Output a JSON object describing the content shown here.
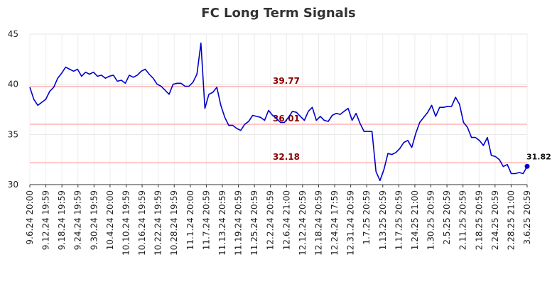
{
  "chart_data": {
    "type": "line",
    "title": "FC Long Term Signals",
    "xlabel": "",
    "ylabel": "",
    "ylim": [
      30,
      45
    ],
    "yticks": [
      30,
      35,
      40,
      45
    ],
    "grid": true,
    "x_tick_labels": [
      "9.6.24 20:00",
      "9.12.24 19:59",
      "9.18.24 19:59",
      "9.24.24 19:59",
      "9.30.24 19:59",
      "10.4.24 20:00",
      "10.10.24 19:59",
      "10.16.24 19:59",
      "10.22.24 19:59",
      "10.28.24 19:59",
      "11.1.24 20:00",
      "11.7.24 20:59",
      "11.13.24 20:59",
      "11.19.24 20:59",
      "11.25.24 20:59",
      "12.2.24 20:59",
      "12.6.24 21:00",
      "12.12.24 20:59",
      "12.18.24 20:59",
      "12.24.24 17:59",
      "12.31.24 20:59",
      "1.7.25 20:59",
      "1.13.25 20:59",
      "1.17.25 20:59",
      "1.24.25 21:00",
      "1.30.25 20:59",
      "2.5.25 20:59",
      "2.11.25 20:59",
      "2.18.25 20:59",
      "2.24.25 20:59",
      "2.28.25 21:00",
      "3.6.25 20:59"
    ],
    "reference_lines": [
      {
        "value": 39.77,
        "label": "39.77"
      },
      {
        "value": 36.01,
        "label": "36.01"
      },
      {
        "value": 32.18,
        "label": "32.18"
      }
    ],
    "series": [
      {
        "color": "#0000cc",
        "values": [
          39.7,
          38.5,
          37.9,
          38.2,
          38.5,
          39.3,
          39.7,
          40.6,
          41.1,
          41.7,
          41.5,
          41.3,
          41.5,
          40.8,
          41.2,
          41.0,
          41.2,
          40.8,
          40.9,
          40.6,
          40.8,
          40.9,
          40.3,
          40.4,
          40.1,
          40.9,
          40.7,
          40.9,
          41.3,
          41.5,
          41.0,
          40.6,
          40.0,
          39.8,
          39.4,
          39.0,
          40.0,
          40.1,
          40.1,
          39.8,
          39.8,
          40.2,
          41.0,
          44.1,
          37.6,
          39.0,
          39.2,
          39.7,
          37.9,
          36.7,
          35.9,
          35.9,
          35.6,
          35.4,
          36.0,
          36.3,
          36.9,
          36.8,
          36.7,
          36.4,
          37.4,
          36.9,
          36.6,
          36.2,
          36.2,
          36.7,
          37.3,
          37.2,
          36.8,
          36.4,
          37.3,
          37.7,
          36.4,
          36.8,
          36.4,
          36.3,
          36.9,
          37.1,
          37.0,
          37.3,
          37.6,
          36.4,
          37.1,
          36.1,
          35.3,
          35.3,
          35.3,
          31.3,
          30.4,
          31.5,
          33.1,
          33.0,
          33.2,
          33.6,
          34.2,
          34.4,
          33.7,
          35.1,
          36.2,
          36.7,
          37.2,
          37.9,
          36.8,
          37.7,
          37.7,
          37.8,
          37.8,
          38.7,
          38.0,
          36.2,
          35.7,
          34.7,
          34.7,
          34.4,
          33.9,
          34.7,
          32.9,
          32.8,
          32.5,
          31.8,
          32.0,
          31.1,
          31.1,
          31.2,
          31.1,
          31.82
        ]
      }
    ],
    "last_value_label": "31.82"
  }
}
